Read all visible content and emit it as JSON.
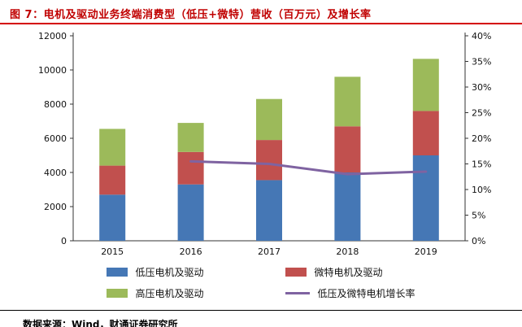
{
  "header": {
    "title": "图 7：电机及驱动业务终端消费型（低压+微特）营收（百万元）及增长率"
  },
  "footer": {
    "source": "数据来源：Wind，财通证券研究所"
  },
  "colors": {
    "title_red": "#c00000",
    "rule_red": "#d40000",
    "footer_rule": "#000000",
    "axis": "#333333"
  },
  "chart_data": {
    "type": "bar",
    "stacked": true,
    "title": "电机及驱动业务终端消费型（低压+微特）营收（百万元）及增长率",
    "categories": [
      "2015",
      "2016",
      "2017",
      "2018",
      "2019"
    ],
    "series": [
      {
        "name": "低压电机及驱动",
        "type": "bar",
        "axis": "left",
        "color": "#4577b5",
        "values": [
          2700,
          3300,
          3550,
          4000,
          5000
        ]
      },
      {
        "name": "微特电机及驱动",
        "type": "bar",
        "axis": "left",
        "color": "#c1504e",
        "values": [
          1700,
          1900,
          2350,
          2700,
          2600
        ]
      },
      {
        "name": "高压电机及驱动",
        "type": "bar",
        "axis": "left",
        "color": "#9cba5a",
        "values": [
          2150,
          1700,
          2400,
          2900,
          3050
        ]
      },
      {
        "name": "低压及微特电机增长率",
        "type": "line",
        "axis": "right",
        "color": "#7f63a1",
        "values": [
          null,
          15.5,
          15,
          13,
          13.5
        ]
      }
    ],
    "left_axis": {
      "min": 0,
      "max": 12000,
      "step": 2000,
      "suffix": ""
    },
    "right_axis": {
      "min": 0,
      "max": 40,
      "step": 5,
      "suffix": "%"
    },
    "legend_position": "bottom",
    "grid": false
  }
}
